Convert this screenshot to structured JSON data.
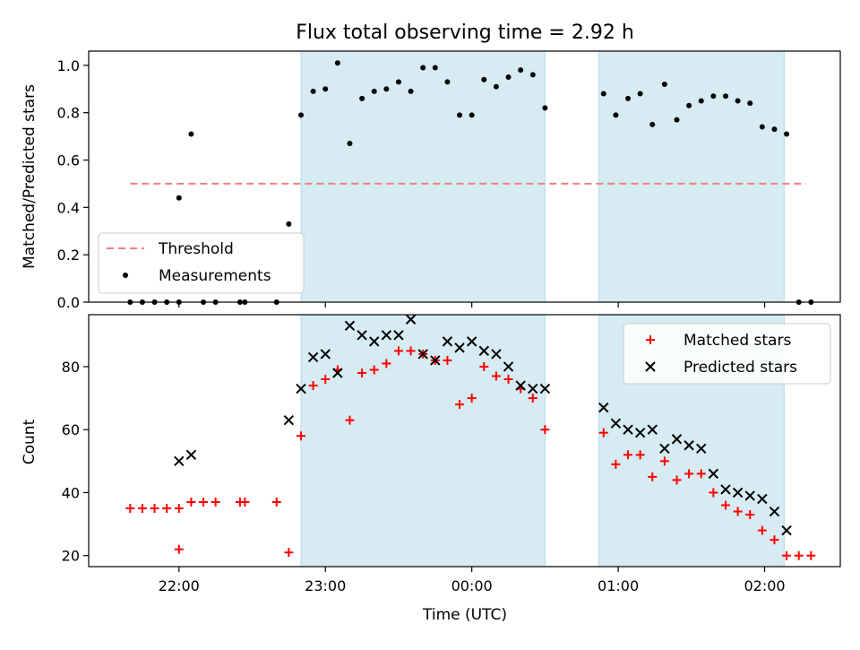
{
  "title": "Flux total observing time = 2.92 h",
  "colors": {
    "shade": "#add8e6",
    "threshold": "#f08080",
    "measurement": "#000000",
    "matched": "#ff0000",
    "predicted": "#000000"
  },
  "chart_data": [
    {
      "type": "scatter",
      "panel": "top",
      "title": "Flux total observing time = 2.92 h",
      "xlabel": "",
      "ylabel": "Matched/Predicted stars",
      "x_axis": "time (UTC), hours after 00:00",
      "ylim": [
        0,
        1.06
      ],
      "yticks": [
        0.0,
        0.2,
        0.4,
        0.6,
        0.8,
        1.0
      ],
      "ytick_labels": [
        "0.0",
        "0.2",
        "0.4",
        "0.6",
        "0.8",
        "1.0"
      ],
      "shaded_intervals": [
        [
          "22:50",
          "00:30"
        ],
        [
          "00:52",
          "02:08"
        ]
      ],
      "threshold": {
        "name": "Threshold",
        "y": 0.5,
        "x_range": [
          "21:40",
          "02:17"
        ],
        "style": "dashed"
      },
      "legend": {
        "position": "lower-left",
        "entries": [
          "Threshold",
          "Measurements"
        ]
      },
      "series": [
        {
          "name": "Measurements",
          "marker": "dot",
          "x": [
            "21:40",
            "21:45",
            "21:50",
            "21:55",
            "22:00",
            "22:00",
            "22:05",
            "22:10",
            "22:15",
            "22:25",
            "22:27",
            "22:40",
            "22:45",
            "22:50",
            "22:55",
            "23:00",
            "23:05",
            "23:10",
            "23:15",
            "23:20",
            "23:25",
            "23:30",
            "23:35",
            "23:40",
            "23:45",
            "23:50",
            "23:55",
            "00:00",
            "00:05",
            "00:10",
            "00:15",
            "00:20",
            "00:25",
            "00:30",
            "00:54",
            "00:59",
            "01:04",
            "01:09",
            "01:14",
            "01:19",
            "01:24",
            "01:29",
            "01:34",
            "01:39",
            "01:44",
            "01:49",
            "01:54",
            "01:59",
            "02:04",
            "02:09",
            "02:14",
            "02:19"
          ],
          "y": [
            0.0,
            0.0,
            0.0,
            0.0,
            0.0,
            0.44,
            0.71,
            0.0,
            0.0,
            0.0,
            0.0,
            0.0,
            0.33,
            0.79,
            0.89,
            0.9,
            1.01,
            0.67,
            0.86,
            0.89,
            0.9,
            0.93,
            0.89,
            0.99,
            0.99,
            0.93,
            0.79,
            0.79,
            0.94,
            0.91,
            0.95,
            0.98,
            0.96,
            0.82,
            0.88,
            0.79,
            0.86,
            0.88,
            0.75,
            0.92,
            0.77,
            0.83,
            0.85,
            0.87,
            0.87,
            0.85,
            0.84,
            0.74,
            0.73,
            0.71,
            0.0,
            0.0
          ]
        }
      ]
    },
    {
      "type": "scatter",
      "panel": "bottom",
      "xlabel": "Time (UTC)",
      "ylabel": "Count",
      "ylim": [
        16.5,
        96.5
      ],
      "yticks": [
        20,
        40,
        60,
        80
      ],
      "ytick_labels": [
        "20",
        "40",
        "60",
        "80"
      ],
      "xlim": [
        "21:23",
        "02:31"
      ],
      "xticks": [
        "22:00",
        "23:00",
        "00:00",
        "01:00",
        "02:00"
      ],
      "shaded_intervals": [
        [
          "22:50",
          "00:30"
        ],
        [
          "00:52",
          "02:08"
        ]
      ],
      "legend": {
        "position": "upper-right",
        "entries": [
          "Matched stars",
          "Predicted stars"
        ]
      },
      "series": [
        {
          "name": "Matched stars",
          "marker": "plus",
          "x": [
            "21:40",
            "21:45",
            "21:50",
            "21:55",
            "22:00",
            "22:00",
            "22:05",
            "22:10",
            "22:15",
            "22:25",
            "22:27",
            "22:40",
            "22:45",
            "22:50",
            "22:55",
            "23:00",
            "23:05",
            "23:10",
            "23:15",
            "23:20",
            "23:25",
            "23:30",
            "23:35",
            "23:40",
            "23:45",
            "23:50",
            "23:55",
            "00:00",
            "00:05",
            "00:10",
            "00:15",
            "00:20",
            "00:25",
            "00:30",
            "00:54",
            "00:59",
            "01:04",
            "01:09",
            "01:14",
            "01:19",
            "01:24",
            "01:29",
            "01:34",
            "01:39",
            "01:44",
            "01:49",
            "01:54",
            "01:59",
            "02:04",
            "02:09",
            "02:14",
            "02:19"
          ],
          "y": [
            35,
            35,
            35,
            35,
            35,
            22,
            37,
            37,
            37,
            37,
            37,
            37,
            21,
            58,
            74,
            76,
            79,
            63,
            78,
            79,
            81,
            85,
            85,
            84,
            82,
            82,
            68,
            70,
            80,
            77,
            76,
            73,
            70,
            60,
            59,
            49,
            52,
            52,
            45,
            50,
            44,
            46,
            46,
            40,
            36,
            34,
            33,
            28,
            25,
            20,
            20,
            20
          ]
        },
        {
          "name": "Predicted stars",
          "marker": "x",
          "x": [
            "22:00",
            "22:05",
            "22:45",
            "22:50",
            "22:55",
            "23:00",
            "23:05",
            "23:10",
            "23:15",
            "23:20",
            "23:25",
            "23:30",
            "23:35",
            "23:40",
            "23:45",
            "23:50",
            "23:55",
            "00:00",
            "00:05",
            "00:10",
            "00:15",
            "00:20",
            "00:25",
            "00:30",
            "00:54",
            "00:59",
            "01:04",
            "01:09",
            "01:14",
            "01:19",
            "01:24",
            "01:29",
            "01:34",
            "01:39",
            "01:44",
            "01:49",
            "01:54",
            "01:59",
            "02:04",
            "02:09"
          ],
          "y": [
            50,
            52,
            63,
            73,
            83,
            84,
            78,
            93,
            90,
            88,
            90,
            90,
            95,
            84,
            82,
            88,
            86,
            88,
            85,
            84,
            80,
            74,
            73,
            73,
            67,
            62,
            60,
            59,
            60,
            54,
            57,
            55,
            54,
            46,
            41,
            40,
            39,
            38,
            34,
            28
          ]
        }
      ]
    }
  ]
}
